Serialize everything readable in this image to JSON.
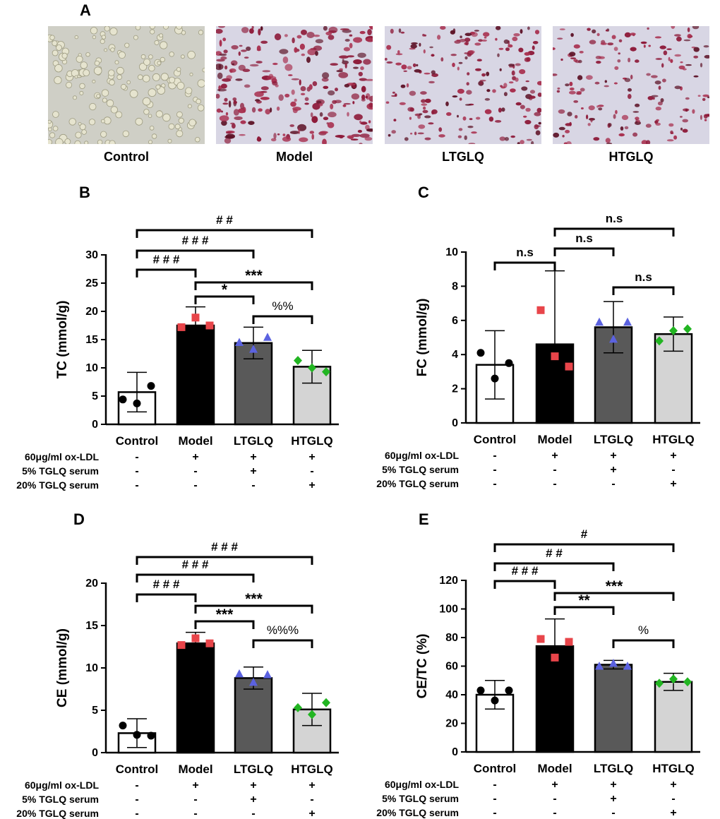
{
  "panel_a": {
    "letter": "A",
    "images": [
      {
        "label": "Control",
        "tone": "clear"
      },
      {
        "label": "Model",
        "tone": "heavy"
      },
      {
        "label": "LTGLQ",
        "tone": "medium"
      },
      {
        "label": "HTGLQ",
        "tone": "light"
      }
    ],
    "stain_color": "#8e1b3a",
    "background_color": "#d8d6e4"
  },
  "treatment_rows": [
    {
      "label": "60μg/ml ox-LDL",
      "signs": [
        "-",
        "+",
        "+",
        "+"
      ]
    },
    {
      "label": "5% TGLQ serum",
      "signs": [
        "-",
        "-",
        "+",
        "-"
      ]
    },
    {
      "label": "20% TGLQ serum",
      "signs": [
        "-",
        "-",
        "-",
        "+"
      ]
    }
  ],
  "colors": {
    "bar_fills": [
      "#ffffff",
      "#000000",
      "#595959",
      "#d4d4d4"
    ],
    "point_colors": [
      "#000000",
      "#e8454a",
      "#5b62e0",
      "#22b522"
    ]
  },
  "chart_data": [
    {
      "letter": "B",
      "type": "bar",
      "ylabel": "TC (mmol/g)",
      "categories": [
        "Control",
        "Model",
        "LTGLQ",
        "HTGLQ"
      ],
      "ylim": [
        0,
        30
      ],
      "yticks": [
        0,
        5,
        10,
        15,
        20,
        25,
        30
      ],
      "values": [
        5.7,
        17.5,
        14.4,
        10.2
      ],
      "errors": [
        3.5,
        3.3,
        2.8,
        2.9
      ],
      "points": [
        [
          4.4,
          3.7,
          6.8
        ],
        [
          17.2,
          18.9,
          17.5
        ],
        [
          14.5,
          13.3,
          15.4
        ],
        [
          11.3,
          10.0,
          9.3
        ]
      ],
      "brackets": [
        {
          "from": 0,
          "to": 3,
          "label": "# #"
        },
        {
          "from": 0,
          "to": 2,
          "label": "# # #"
        },
        {
          "from": 0,
          "to": 1,
          "label": "# # #"
        },
        {
          "from": 1,
          "to": 3,
          "label": "***"
        },
        {
          "from": 1,
          "to": 2,
          "label": "*"
        },
        {
          "from": 2,
          "to": 3,
          "label": "%%"
        }
      ]
    },
    {
      "letter": "C",
      "type": "bar",
      "ylabel": "FC (mmol/g)",
      "categories": [
        "Control",
        "Model",
        "LTGLQ",
        "HTGLQ"
      ],
      "ylim": [
        0,
        10
      ],
      "yticks": [
        0,
        2,
        4,
        6,
        8,
        10
      ],
      "values": [
        3.4,
        4.6,
        5.6,
        5.2
      ],
      "errors": [
        2.0,
        4.3,
        1.5,
        1.0
      ],
      "points": [
        [
          4.1,
          2.6,
          3.5
        ],
        [
          6.6,
          3.9,
          3.3
        ],
        [
          5.9,
          4.9,
          5.9
        ],
        [
          4.8,
          5.4,
          5.5
        ]
      ],
      "brackets": [
        {
          "from": 1,
          "to": 3,
          "label": "n.s"
        },
        {
          "from": 1,
          "to": 2,
          "label": "n.s"
        },
        {
          "from": 0,
          "to": 1,
          "label": "n.s"
        },
        {
          "from": 2,
          "to": 3,
          "label": "n.s"
        }
      ]
    },
    {
      "letter": "D",
      "type": "bar",
      "ylabel": "CE (mmol/g)",
      "categories": [
        "Control",
        "Model",
        "LTGLQ",
        "HTGLQ"
      ],
      "ylim": [
        0,
        20
      ],
      "yticks": [
        0,
        5,
        10,
        15,
        20
      ],
      "values": [
        2.3,
        12.9,
        8.8,
        5.1
      ],
      "errors": [
        1.7,
        1.3,
        1.3,
        1.9
      ],
      "points": [
        [
          3.2,
          2.1,
          2.0
        ],
        [
          12.7,
          13.5,
          12.9
        ],
        [
          9.3,
          8.3,
          9.2
        ],
        [
          5.3,
          4.5,
          5.9
        ]
      ],
      "brackets": [
        {
          "from": 0,
          "to": 3,
          "label": "# # #"
        },
        {
          "from": 0,
          "to": 2,
          "label": "# # #"
        },
        {
          "from": 0,
          "to": 1,
          "label": "# # #"
        },
        {
          "from": 1,
          "to": 3,
          "label": "***"
        },
        {
          "from": 1,
          "to": 2,
          "label": "***"
        },
        {
          "from": 2,
          "to": 3,
          "label": "%%%"
        }
      ]
    },
    {
      "letter": "E",
      "type": "bar",
      "ylabel": "CE/TC (%)",
      "categories": [
        "Control",
        "Model",
        "LTGLQ",
        "HTGLQ"
      ],
      "ylim": [
        0,
        120
      ],
      "yticks": [
        0,
        20,
        40,
        60,
        80,
        100,
        120
      ],
      "values": [
        40,
        74,
        61,
        49
      ],
      "errors": [
        10,
        19,
        3,
        6
      ],
      "points": [
        [
          43,
          36,
          43
        ],
        [
          79,
          66,
          77
        ],
        [
          60,
          62,
          60
        ],
        [
          48,
          51,
          49
        ]
      ],
      "brackets": [
        {
          "from": 0,
          "to": 3,
          "label": "#"
        },
        {
          "from": 0,
          "to": 2,
          "label": "# #"
        },
        {
          "from": 0,
          "to": 1,
          "label": "# # #"
        },
        {
          "from": 1,
          "to": 3,
          "label": "***"
        },
        {
          "from": 1,
          "to": 2,
          "label": "**"
        },
        {
          "from": 2,
          "to": 3,
          "label": "%"
        }
      ]
    }
  ]
}
